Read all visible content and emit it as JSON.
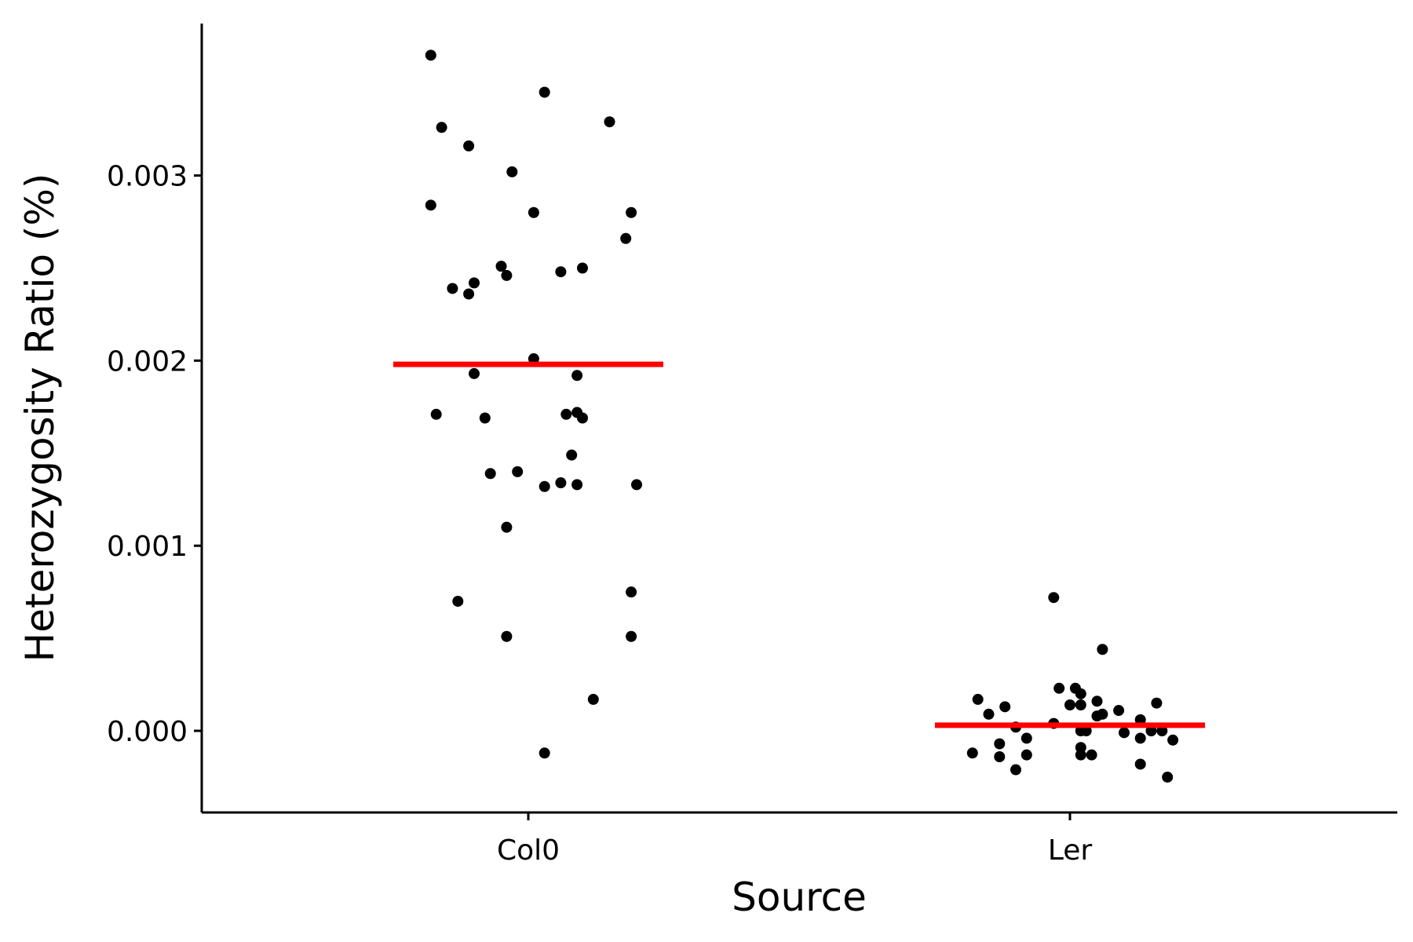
{
  "chart_data": {
    "type": "scatter",
    "title": "",
    "xlabel": "Source",
    "ylabel": "Heterozygosity Ratio (%)",
    "categories": [
      "Col0",
      "Ler"
    ],
    "ylim": [
      -0.00045,
      0.0038
    ],
    "yticks": [
      {
        "value": 0.0,
        "label": "0.000"
      },
      {
        "value": 0.001,
        "label": "0.001"
      },
      {
        "value": 0.002,
        "label": "0.002"
      },
      {
        "value": 0.003,
        "label": "0.003"
      }
    ],
    "grid": false,
    "legend": "none",
    "colors": {
      "points": "#000000",
      "mean": "#ff0000",
      "axis": "#000000"
    },
    "groups": [
      {
        "category": "Col0",
        "mean": 0.00198,
        "points": [
          {
            "x": -0.18,
            "y": 0.00365
          },
          {
            "x": 0.03,
            "y": 0.00345
          },
          {
            "x": -0.16,
            "y": 0.00326
          },
          {
            "x": 0.15,
            "y": 0.00329
          },
          {
            "x": -0.11,
            "y": 0.00316
          },
          {
            "x": -0.03,
            "y": 0.00302
          },
          {
            "x": -0.18,
            "y": 0.00284
          },
          {
            "x": 0.01,
            "y": 0.0028
          },
          {
            "x": 0.19,
            "y": 0.0028
          },
          {
            "x": 0.18,
            "y": 0.00266
          },
          {
            "x": -0.05,
            "y": 0.00251
          },
          {
            "x": 0.1,
            "y": 0.0025
          },
          {
            "x": 0.06,
            "y": 0.00248
          },
          {
            "x": -0.04,
            "y": 0.00246
          },
          {
            "x": -0.14,
            "y": 0.00239
          },
          {
            "x": -0.1,
            "y": 0.00242
          },
          {
            "x": -0.11,
            "y": 0.00236
          },
          {
            "x": 0.01,
            "y": 0.00201
          },
          {
            "x": -0.1,
            "y": 0.00193
          },
          {
            "x": 0.09,
            "y": 0.00192
          },
          {
            "x": -0.17,
            "y": 0.00171
          },
          {
            "x": 0.07,
            "y": 0.00171
          },
          {
            "x": 0.09,
            "y": 0.00172
          },
          {
            "x": 0.1,
            "y": 0.00169
          },
          {
            "x": -0.08,
            "y": 0.00169
          },
          {
            "x": 0.08,
            "y": 0.00149
          },
          {
            "x": -0.07,
            "y": 0.00139
          },
          {
            "x": -0.02,
            "y": 0.0014
          },
          {
            "x": 0.06,
            "y": 0.00134
          },
          {
            "x": 0.09,
            "y": 0.00133
          },
          {
            "x": 0.03,
            "y": 0.00132
          },
          {
            "x": 0.2,
            "y": 0.00133
          },
          {
            "x": -0.04,
            "y": 0.0011
          },
          {
            "x": 0.19,
            "y": 0.00075
          },
          {
            "x": -0.13,
            "y": 0.0007
          },
          {
            "x": -0.04,
            "y": 0.00051
          },
          {
            "x": 0.19,
            "y": 0.00051
          },
          {
            "x": 0.12,
            "y": 0.00017
          },
          {
            "x": 0.03,
            "y": -0.00012
          }
        ]
      },
      {
        "category": "Ler",
        "mean": 3e-05,
        "points": [
          {
            "x": -0.03,
            "y": 0.00072
          },
          {
            "x": 0.06,
            "y": 0.00044
          },
          {
            "x": -0.02,
            "y": 0.00023
          },
          {
            "x": 0.01,
            "y": 0.00023
          },
          {
            "x": 0.02,
            "y": 0.0002
          },
          {
            "x": -0.17,
            "y": 0.00017
          },
          {
            "x": 0.05,
            "y": 0.00016
          },
          {
            "x": 0.16,
            "y": 0.00015
          },
          {
            "x": 0.0,
            "y": 0.00014
          },
          {
            "x": 0.02,
            "y": 0.00014
          },
          {
            "x": -0.12,
            "y": 0.00013
          },
          {
            "x": 0.09,
            "y": 0.00011
          },
          {
            "x": -0.15,
            "y": 9e-05
          },
          {
            "x": 0.06,
            "y": 9e-05
          },
          {
            "x": 0.05,
            "y": 8e-05
          },
          {
            "x": 0.13,
            "y": 6e-05
          },
          {
            "x": -0.03,
            "y": 4e-05
          },
          {
            "x": -0.1,
            "y": 2e-05
          },
          {
            "x": 0.02,
            "y": 0.0
          },
          {
            "x": 0.03,
            "y": 0.0
          },
          {
            "x": 0.1,
            "y": -1e-05
          },
          {
            "x": 0.15,
            "y": 0.0
          },
          {
            "x": 0.17,
            "y": 0.0
          },
          {
            "x": -0.08,
            "y": -4e-05
          },
          {
            "x": 0.13,
            "y": -4e-05
          },
          {
            "x": 0.19,
            "y": -5e-05
          },
          {
            "x": -0.13,
            "y": -7e-05
          },
          {
            "x": 0.02,
            "y": -9e-05
          },
          {
            "x": -0.18,
            "y": -0.00012
          },
          {
            "x": -0.08,
            "y": -0.00013
          },
          {
            "x": 0.02,
            "y": -0.00013
          },
          {
            "x": 0.04,
            "y": -0.00013
          },
          {
            "x": -0.13,
            "y": -0.00014
          },
          {
            "x": 0.13,
            "y": -0.00018
          },
          {
            "x": -0.1,
            "y": -0.00021
          },
          {
            "x": 0.18,
            "y": -0.00025
          }
        ]
      }
    ]
  }
}
